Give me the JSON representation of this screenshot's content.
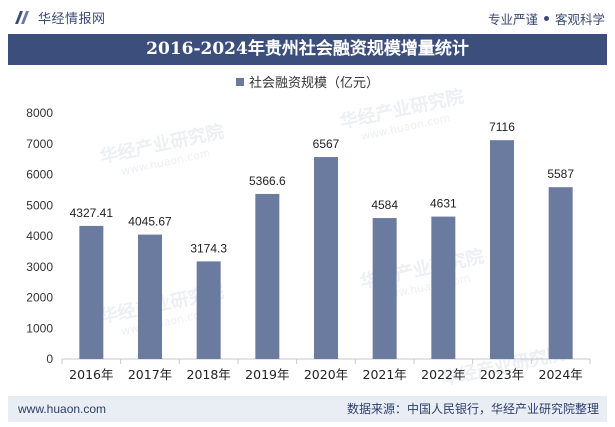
{
  "header": {
    "brand": "华经情报网",
    "slogan_left": "专业严谨",
    "slogan_right": "客观科学"
  },
  "title": "2016-2024年贵州社会融资规模增量统计",
  "footer": {
    "url": "www.huaon.com",
    "source": "数据来源：中国人民银行，华经产业研究院整理"
  },
  "watermark": {
    "text": "华经产业研究院",
    "url": "www.huaon.com"
  },
  "colors": {
    "bar": "#6b7a9f",
    "title_bar": "#3c4f7c",
    "footer_bg": "#e9edf4"
  },
  "chart_data": {
    "type": "bar",
    "categories": [
      "2016年",
      "2017年",
      "2018年",
      "2019年",
      "2020年",
      "2021年",
      "2022年",
      "2023年",
      "2024年"
    ],
    "series": [
      {
        "name": "社会融资规模（亿元）",
        "values": [
          4327.41,
          4045.67,
          3174.3,
          5366.6,
          6567,
          4584,
          4631,
          7116,
          5587
        ],
        "labels": [
          "4327.41",
          "4045.67",
          "3174.3",
          "5366.6",
          "6567",
          "4584",
          "4631",
          "7116",
          "5587"
        ]
      }
    ],
    "ylim": [
      0,
      8000
    ],
    "yticks": [
      0,
      1000,
      2000,
      3000,
      4000,
      5000,
      6000,
      7000,
      8000
    ],
    "legend": "top-center",
    "grid": false
  }
}
